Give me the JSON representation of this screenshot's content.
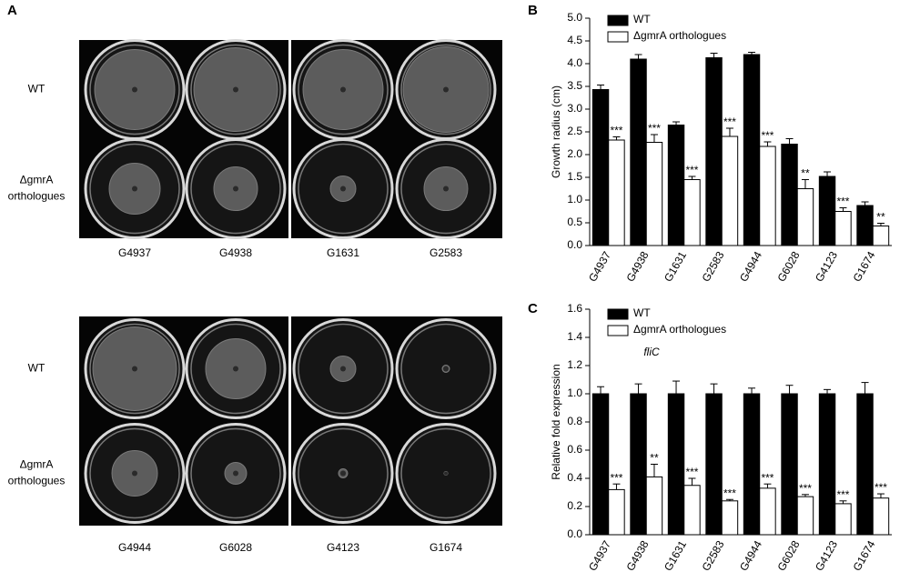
{
  "panel_a": {
    "panel_label": "A",
    "wt_label": "WT",
    "mutant_label_lines": [
      "ΔgmrA",
      "orthologues"
    ],
    "strains_top": [
      "G4937",
      "G4938",
      "G1631",
      "G2583"
    ],
    "strains_bottom": [
      "G4944",
      "G6028",
      "G4123",
      "G1674"
    ]
  },
  "chart_data": [
    {
      "type": "bar",
      "panel_label": "B",
      "y_label": "Growth radius (cm)",
      "categories": [
        "G4937",
        "G4938",
        "G1631",
        "G2583",
        "G4944",
        "G6028",
        "G4123",
        "G1674"
      ],
      "series": [
        {
          "name": "WT",
          "color": "#000000",
          "values": [
            3.43,
            4.1,
            2.65,
            4.13,
            4.2,
            2.23,
            1.52,
            0.88
          ],
          "errors": [
            0.1,
            0.1,
            0.07,
            0.1,
            0.05,
            0.12,
            0.1,
            0.08
          ]
        },
        {
          "name": "ΔgmrA orthologues",
          "color": "#ffffff",
          "values": [
            2.32,
            2.27,
            1.45,
            2.4,
            2.18,
            1.25,
            0.75,
            0.43
          ],
          "errors": [
            0.07,
            0.17,
            0.07,
            0.18,
            0.1,
            0.2,
            0.08,
            0.06
          ],
          "annotations": [
            "***",
            "***",
            "***",
            "***",
            "***",
            "**",
            "***",
            "**"
          ]
        }
      ],
      "ylim": [
        0,
        5
      ],
      "yticks": [
        {
          "value": 0,
          "label": "0.0"
        },
        0.5,
        {
          "value": 1,
          "label": "1.0"
        },
        1.5,
        {
          "value": 2,
          "label": "2.0"
        },
        2.5,
        {
          "value": 3,
          "label": "3.0"
        },
        3.5,
        {
          "value": 4,
          "label": "4.0"
        },
        4.5,
        {
          "value": 5,
          "label": "5.0"
        }
      ],
      "legend": "upper left"
    },
    {
      "type": "bar",
      "panel_label": "C",
      "subtitle": "fliC",
      "y_label": "Relative fold expression",
      "categories": [
        "G4937",
        "G4938",
        "G1631",
        "G2583",
        "G4944",
        "G6028",
        "G4123",
        "G1674"
      ],
      "series": [
        {
          "name": "WT",
          "color": "#000000",
          "values": [
            1.0,
            1.0,
            1.0,
            1.0,
            1.0,
            1.0,
            1.0,
            1.0
          ],
          "errors": [
            0.05,
            0.07,
            0.09,
            0.07,
            0.04,
            0.06,
            0.03,
            0.08
          ]
        },
        {
          "name": "ΔgmrA orthologues",
          "color": "#ffffff",
          "values": [
            0.32,
            0.41,
            0.35,
            0.24,
            0.33,
            0.27,
            0.22,
            0.26
          ],
          "errors": [
            0.04,
            0.09,
            0.05,
            0.01,
            0.03,
            0.015,
            0.02,
            0.03
          ],
          "annotations": [
            "***",
            "**",
            "***",
            "***",
            "***",
            "***",
            "***",
            "***"
          ]
        }
      ],
      "ylim": [
        0,
        1.6
      ],
      "yticks": [
        {
          "value": 0,
          "label": "0.0"
        },
        0.2,
        0.4,
        0.6,
        0.8,
        {
          "value": 1,
          "label": "1.0"
        },
        1.2,
        1.4,
        1.6
      ],
      "legend": "upper left"
    }
  ]
}
